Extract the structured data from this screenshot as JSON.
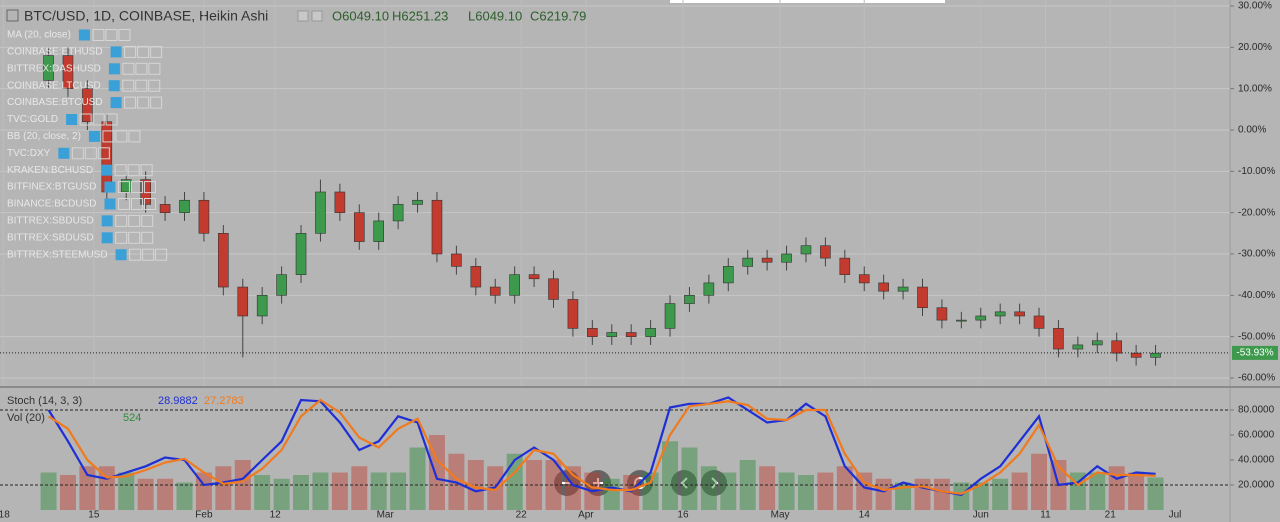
{
  "chart_data": [
    {
      "type": "candlestick",
      "title": "BTC/USD, 1D, COINBASE, Heikin Ashi",
      "ohlc_labels": [
        "O6049.10",
        "H6251.23",
        "L6049.10",
        "C6219.79"
      ],
      "overlays": [
        "MA (20, close)",
        "COINBASE:ETHUSD",
        "BITTREX:DASHUSD",
        "COINBASE:LTCUSD",
        "COINBASE:BTCUSD",
        "TVC:GOLD",
        "BB (20, close, 2)",
        "TVC:DXY",
        "KRAKEN:BCHUSD",
        "BITFINEX:BTGUSD",
        "BINANCE:BCDUSD",
        "BITTREX:SBDUSD",
        "BITTREX:SBDUSD",
        "BITTREX:STEEMUSD"
      ],
      "x": [
        8,
        11,
        14,
        17,
        20,
        23,
        26,
        29,
        32,
        35,
        38,
        41,
        44,
        47,
        50,
        53,
        56,
        59,
        62,
        65,
        68,
        71,
        74,
        77,
        80,
        83,
        86,
        89,
        92,
        95,
        98,
        101,
        104,
        107,
        110,
        113,
        116,
        119,
        122,
        125,
        128,
        131,
        134,
        137,
        140,
        143,
        146,
        149,
        152,
        155,
        158,
        161,
        164,
        167,
        170,
        173,
        176,
        179
      ],
      "open": [
        12,
        18,
        10,
        2,
        -15,
        -12,
        -18,
        -20,
        -17,
        -25,
        -38,
        -45,
        -40,
        -35,
        -25,
        -15,
        -20,
        -27,
        -22,
        -18,
        -17,
        -30,
        -33,
        -38,
        -40,
        -35,
        -36,
        -41,
        -48,
        -50,
        -49,
        -50,
        -48,
        -42,
        -40,
        -37,
        -33,
        -31,
        -32,
        -30,
        -28,
        -31,
        -35,
        -37,
        -39,
        -38,
        -43,
        -46,
        -46,
        -45,
        -44,
        -45,
        -48,
        -53,
        -52,
        -51,
        -54,
        -55
      ],
      "high": [
        20,
        20,
        12,
        4,
        -10,
        -10,
        -16,
        -15,
        -15,
        -23,
        -36,
        -38,
        -33,
        -23,
        -12,
        -13,
        -18,
        -20,
        -16,
        -15,
        -15,
        -28,
        -31,
        -36,
        -33,
        -33,
        -34,
        -39,
        -46,
        -47,
        -47,
        -46,
        -40,
        -38,
        -35,
        -31,
        -29,
        -29,
        -28,
        -26,
        -26,
        -29,
        -33,
        -35,
        -36,
        -36,
        -41,
        -44,
        -43,
        -42,
        -42,
        -43,
        -46,
        -50,
        -49,
        -49,
        -52,
        -52
      ],
      "low": [
        10,
        8,
        0,
        -17,
        -17,
        -20,
        -22,
        -22,
        -27,
        -40,
        -55,
        -47,
        -42,
        -37,
        -27,
        -22,
        -29,
        -29,
        -24,
        -20,
        -32,
        -35,
        -40,
        -42,
        -42,
        -38,
        -43,
        -50,
        -52,
        -52,
        -52,
        -52,
        -50,
        -44,
        -42,
        -39,
        -35,
        -34,
        -34,
        -32,
        -33,
        -37,
        -39,
        -41,
        -41,
        -45,
        -48,
        -48,
        -48,
        -47,
        -47,
        -50,
        -55,
        -55,
        -54,
        -56,
        -57,
        -57
      ],
      "close": [
        18,
        10,
        2,
        -15,
        -12,
        -18,
        -20,
        -17,
        -25,
        -38,
        -45,
        -40,
        -35,
        -25,
        -15,
        -20,
        -27,
        -22,
        -18,
        -17,
        -30,
        -33,
        -38,
        -40,
        -35,
        -36,
        -41,
        -48,
        -50,
        -49,
        -50,
        -48,
        -42,
        -40,
        -37,
        -33,
        -31,
        -32,
        -30,
        -28,
        -31,
        -35,
        -37,
        -39,
        -38,
        -43,
        -46,
        -46,
        -45,
        -44,
        -45,
        -48,
        -53,
        -52,
        -51,
        -54,
        -55,
        -54
      ],
      "up_color": "#3d9a4c",
      "down_color": "#c23b2e",
      "xlim": [
        0.5,
        190.5
      ],
      "ylim": [
        -61.94,
        31.45
      ],
      "yticks": [
        {
          "value": 30,
          "label": "30.00%"
        },
        {
          "value": 20,
          "label": "20.00%"
        },
        {
          "value": 10,
          "label": "10.00%"
        },
        {
          "value": 0,
          "label": "0.00%"
        },
        {
          "value": -10,
          "label": "-10.00%"
        },
        {
          "value": -20,
          "label": "-20.00%"
        },
        {
          "value": -30,
          "label": "-30.00%"
        },
        {
          "value": -40,
          "label": "-40.00%"
        },
        {
          "value": -50,
          "label": "-50.00%"
        },
        {
          "value": -60,
          "label": "-60.00%"
        }
      ],
      "xticks": [
        {
          "value": 1,
          "label": "'18"
        },
        {
          "value": 15,
          "label": "15"
        },
        {
          "value": 32,
          "label": "Feb"
        },
        {
          "value": 43,
          "label": "12"
        },
        {
          "value": 60,
          "label": "Mar"
        },
        {
          "value": 81,
          "label": "22"
        },
        {
          "value": 91,
          "label": "Apr"
        },
        {
          "value": 106,
          "label": "16"
        },
        {
          "value": 121,
          "label": "May"
        },
        {
          "value": 134,
          "label": "14"
        },
        {
          "value": 152,
          "label": "Jun"
        },
        {
          "value": 162,
          "label": "11"
        },
        {
          "value": 172,
          "label": "21"
        },
        {
          "value": 182,
          "label": "Jul"
        }
      ],
      "last_value": {
        "value": -53.93,
        "label": "-53.93%"
      },
      "grid": true
    },
    {
      "type": "line",
      "title": "Stoch (14, 3, 3)",
      "x": [
        8,
        11,
        14,
        17,
        20,
        23,
        26,
        29,
        32,
        35,
        38,
        41,
        44,
        47,
        50,
        53,
        56,
        59,
        62,
        65,
        68,
        71,
        74,
        77,
        80,
        83,
        86,
        89,
        92,
        95,
        98,
        101,
        104,
        107,
        110,
        113,
        116,
        119,
        122,
        125,
        128,
        131,
        134,
        137,
        140,
        143,
        146,
        149,
        152,
        155,
        158,
        161,
        164,
        167,
        170,
        173,
        176,
        179
      ],
      "series": [
        {
          "color": "#1f2fd6",
          "last_label": "28.9882",
          "values": [
            80,
            55,
            28,
            25,
            30,
            35,
            42,
            40,
            20,
            22,
            25,
            40,
            55,
            88,
            87,
            70,
            48,
            55,
            75,
            70,
            25,
            22,
            15,
            18,
            40,
            50,
            40,
            20,
            15,
            18,
            15,
            30,
            82,
            85,
            85,
            90,
            80,
            70,
            72,
            85,
            75,
            35,
            18,
            15,
            22,
            18,
            15,
            12,
            25,
            35,
            55,
            75,
            20,
            22,
            35,
            25,
            30,
            28.9882
          ]
        },
        {
          "color": "#f07a1e",
          "last_label": "27.2783",
          "values": [
            75,
            65,
            40,
            26,
            27,
            32,
            38,
            41,
            30,
            21,
            23,
            33,
            48,
            75,
            88,
            78,
            58,
            50,
            65,
            73,
            40,
            25,
            18,
            16,
            30,
            48,
            45,
            28,
            18,
            16,
            16,
            22,
            60,
            83,
            85,
            87,
            84,
            73,
            72,
            80,
            80,
            45,
            22,
            16,
            18,
            19,
            15,
            13,
            20,
            30,
            45,
            68,
            35,
            20,
            30,
            28,
            28,
            27.2783
          ]
        }
      ],
      "volume": {
        "title": "Vol (20)",
        "last_label": "524",
        "color": "#2e8b3a",
        "values": [
          30,
          28,
          35,
          35,
          30,
          25,
          25,
          22,
          30,
          35,
          40,
          28,
          25,
          28,
          30,
          30,
          35,
          30,
          30,
          50,
          60,
          45,
          40,
          35,
          45,
          40,
          40,
          35,
          30,
          25,
          28,
          30,
          55,
          50,
          35,
          30,
          40,
          35,
          30,
          28,
          30,
          35,
          30,
          25,
          22,
          25,
          25,
          22,
          22,
          25,
          30,
          45,
          40,
          30,
          30,
          35,
          30,
          26
        ]
      },
      "xlim": [
        0.5,
        190.5
      ],
      "ylim": [
        -9.6,
        96
      ],
      "yticks": [
        {
          "value": 80,
          "label": "80.0000"
        },
        {
          "value": 60,
          "label": "60.0000"
        },
        {
          "value": 40,
          "label": "40.0000"
        },
        {
          "value": 20,
          "label": "20.0000"
        }
      ],
      "bands": [
        80,
        20
      ]
    }
  ]
}
